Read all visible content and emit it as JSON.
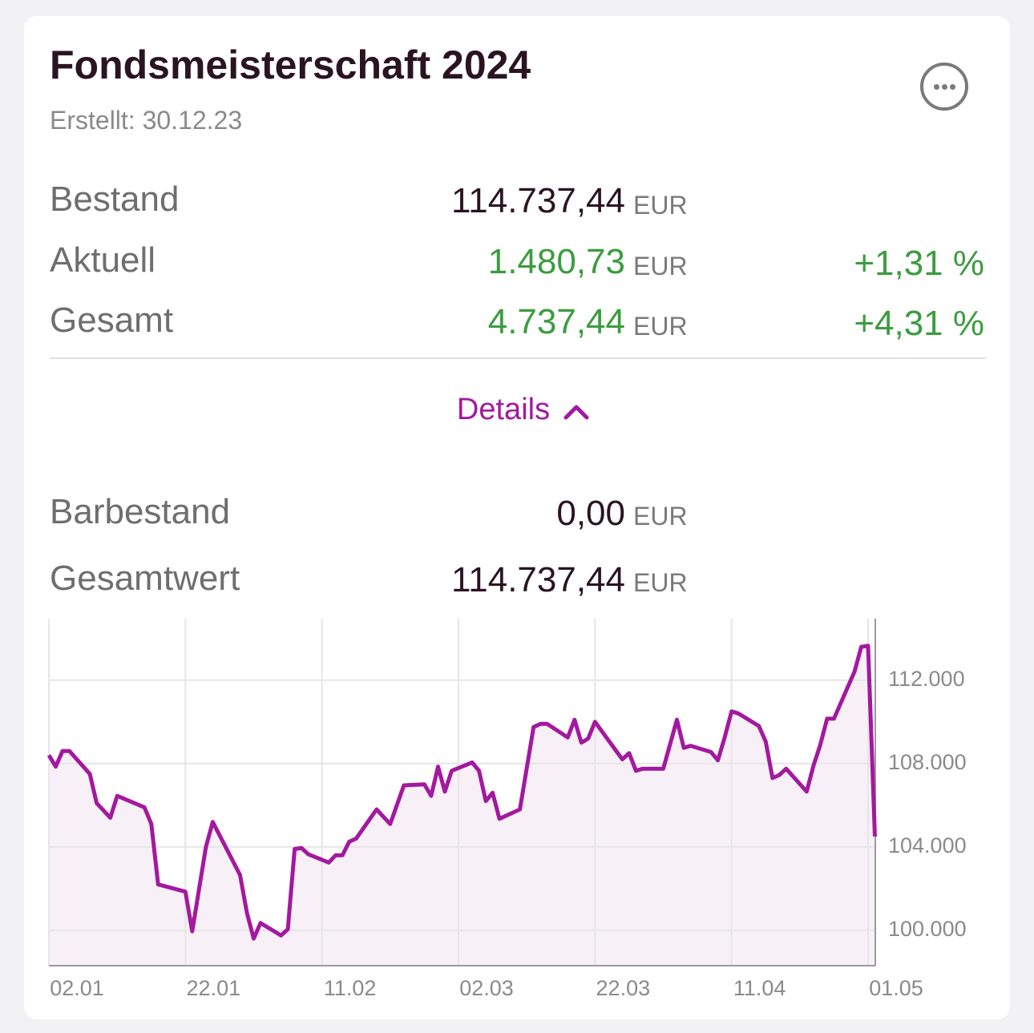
{
  "header": {
    "title": "Fondsmeisterschaft 2024",
    "subtitle": "Erstellt: 30.12.23"
  },
  "summary": [
    {
      "label": "Bestand",
      "value": "114.737,44",
      "unit": "EUR"
    },
    {
      "label": "Aktuell",
      "value": "1.480,73",
      "unit": "EUR",
      "change": "+1,31 %"
    },
    {
      "label": "Gesamt",
      "value": "4.737,44",
      "unit": "EUR",
      "change": "+4,31 %"
    }
  ],
  "details_toggle": "Details",
  "details": [
    {
      "label": "Barbestand",
      "value": "0,00",
      "unit": "EUR"
    },
    {
      "label": "Gesamtwert",
      "value": "114.737,44",
      "unit": "EUR"
    }
  ],
  "chart_data": {
    "type": "line",
    "color": "#a3199f",
    "area_color": "#f8f0f7",
    "grid": true,
    "y_axis_side": "right",
    "x": [
      "02.01",
      "03.01",
      "04.01",
      "05.01",
      "08.01",
      "09.01",
      "11.01",
      "12.01",
      "16.01",
      "17.01",
      "18.01",
      "22.01",
      "23.01",
      "25.01",
      "26.01",
      "30.01",
      "31.01",
      "01.02",
      "02.02",
      "05.02",
      "06.02",
      "07.02",
      "08.02",
      "09.02",
      "12.02",
      "13.02",
      "14.02",
      "15.02",
      "16.02",
      "19.02",
      "21.02",
      "23.02",
      "26.02",
      "27.02",
      "28.02",
      "29.02",
      "01.03",
      "04.03",
      "05.03",
      "06.03",
      "07.03",
      "08.03",
      "11.03",
      "13.03",
      "14.03",
      "15.03",
      "18.03",
      "19.03",
      "20.03",
      "21.03",
      "22.03",
      "26.03",
      "27.03",
      "28.03",
      "29.03",
      "01.04",
      "03.04",
      "04.04",
      "05.04",
      "08.04",
      "09.04",
      "10.04",
      "11.04",
      "12.04",
      "15.04",
      "16.04",
      "17.04",
      "18.04",
      "19.04",
      "22.04",
      "23.04",
      "24.04",
      "25.04",
      "26.04",
      "29.04",
      "30.04",
      "01.05",
      "02.05"
    ],
    "values": [
      108400,
      107850,
      108600,
      108600,
      107500,
      106100,
      105400,
      106450,
      105900,
      105100,
      102200,
      101850,
      99950,
      104000,
      105200,
      102650,
      100850,
      99600,
      100350,
      99750,
      100050,
      103900,
      103950,
      103650,
      103250,
      103600,
      103600,
      104250,
      104400,
      105800,
      105100,
      106950,
      107000,
      106450,
      107850,
      106650,
      107650,
      108050,
      107650,
      106200,
      106600,
      105350,
      105800,
      109750,
      109900,
      109900,
      109250,
      110100,
      109000,
      109200,
      110000,
      108200,
      108500,
      107650,
      107750,
      107750,
      110100,
      108750,
      108850,
      108550,
      108150,
      109250,
      110500,
      110400,
      109800,
      109050,
      107300,
      107450,
      107750,
      106650,
      107900,
      108900,
      110150,
      110150,
      112400,
      113600,
      113650,
      104500
    ],
    "xticks": [
      "02.01",
      "22.01",
      "11.02",
      "02.03",
      "22.03",
      "11.04",
      "01.05"
    ],
    "ylim": [
      98300,
      114950
    ],
    "yticks": [
      {
        "value": 100000,
        "label": "100.000"
      },
      {
        "value": 104000,
        "label": "104.000"
      },
      {
        "value": 108000,
        "label": "108.000"
      },
      {
        "value": 112000,
        "label": "112.000"
      }
    ]
  }
}
